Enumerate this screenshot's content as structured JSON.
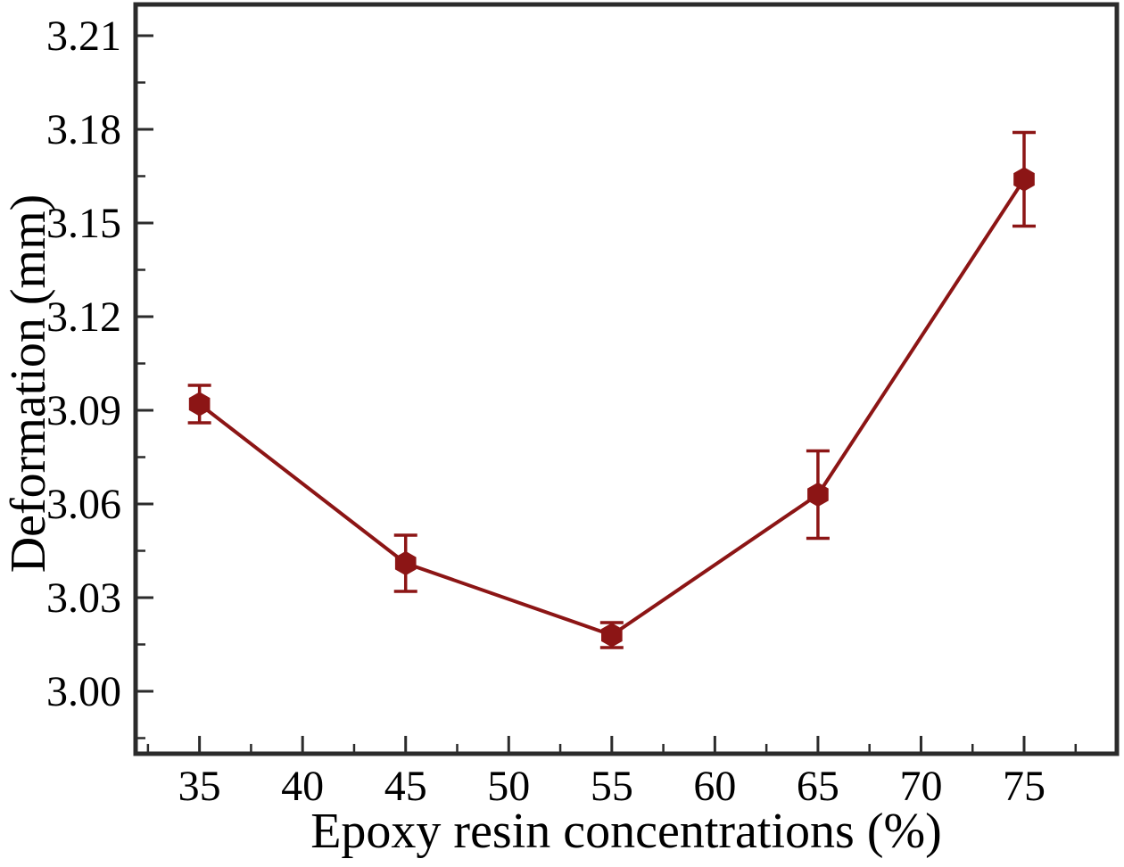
{
  "figure": {
    "background": "#ffffff"
  },
  "chart_data": {
    "type": "line",
    "title": "",
    "xlabel": "Epoxy resin concentrations (%)",
    "ylabel": "Deformation (mm)",
    "x": [
      35,
      45,
      55,
      65,
      75
    ],
    "series": [
      {
        "name": "Deformation",
        "values": [
          3.092,
          3.041,
          3.018,
          3.063,
          3.164
        ],
        "errors": [
          0.006,
          0.009,
          0.004,
          0.014,
          0.015
        ],
        "color": "#8c1515",
        "marker": "hexagon"
      }
    ],
    "xlim": [
      31.9,
      79.5
    ],
    "ylim": [
      2.98,
      3.22
    ],
    "x_ticks": {
      "values": [
        35,
        40,
        45,
        50,
        55,
        60,
        65,
        70,
        75
      ],
      "labels": [
        "35",
        "40",
        "45",
        "50",
        "55",
        "60",
        "65",
        "70",
        "75"
      ]
    },
    "x_minor_ticks": [
      32.5,
      37.5,
      42.5,
      47.5,
      52.5,
      57.5,
      62.5,
      67.5,
      72.5,
      77.5
    ],
    "y_ticks": {
      "values": [
        3.0,
        3.03,
        3.06,
        3.09,
        3.12,
        3.15,
        3.18,
        3.21
      ],
      "labels": [
        "3.00",
        "3.03",
        "3.06",
        "3.09",
        "3.12",
        "3.15",
        "3.18",
        "3.21"
      ]
    },
    "y_minor_ticks": [
      2.985,
      3.015,
      3.045,
      3.075,
      3.105,
      3.135,
      3.165,
      3.195
    ],
    "grid": false,
    "legend": "none",
    "frame_color": "#2b2b2b",
    "text_color": "#000000"
  }
}
